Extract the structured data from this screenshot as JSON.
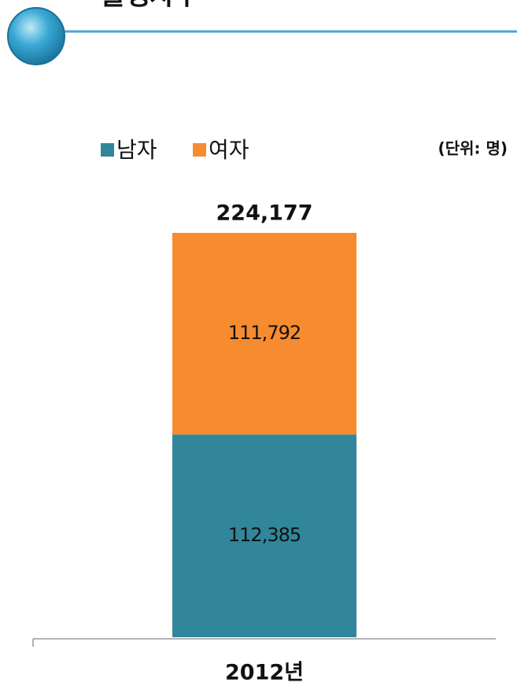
{
  "chart_data": {
    "type": "stacked_bar",
    "title": "출생자수",
    "unit_note": "(단위: 명)",
    "categories": [
      "2012년"
    ],
    "series": [
      {
        "name": "남자",
        "color": "#31869b",
        "values": [
          112385
        ],
        "value_labels": [
          "112,385"
        ]
      },
      {
        "name": "여자",
        "color": "#f68b2f",
        "values": [
          111792
        ],
        "value_labels": [
          "111,792"
        ]
      }
    ],
    "totals": [
      224177
    ],
    "total_labels": [
      "224,177"
    ],
    "ylim": [
      0,
      224177
    ]
  }
}
